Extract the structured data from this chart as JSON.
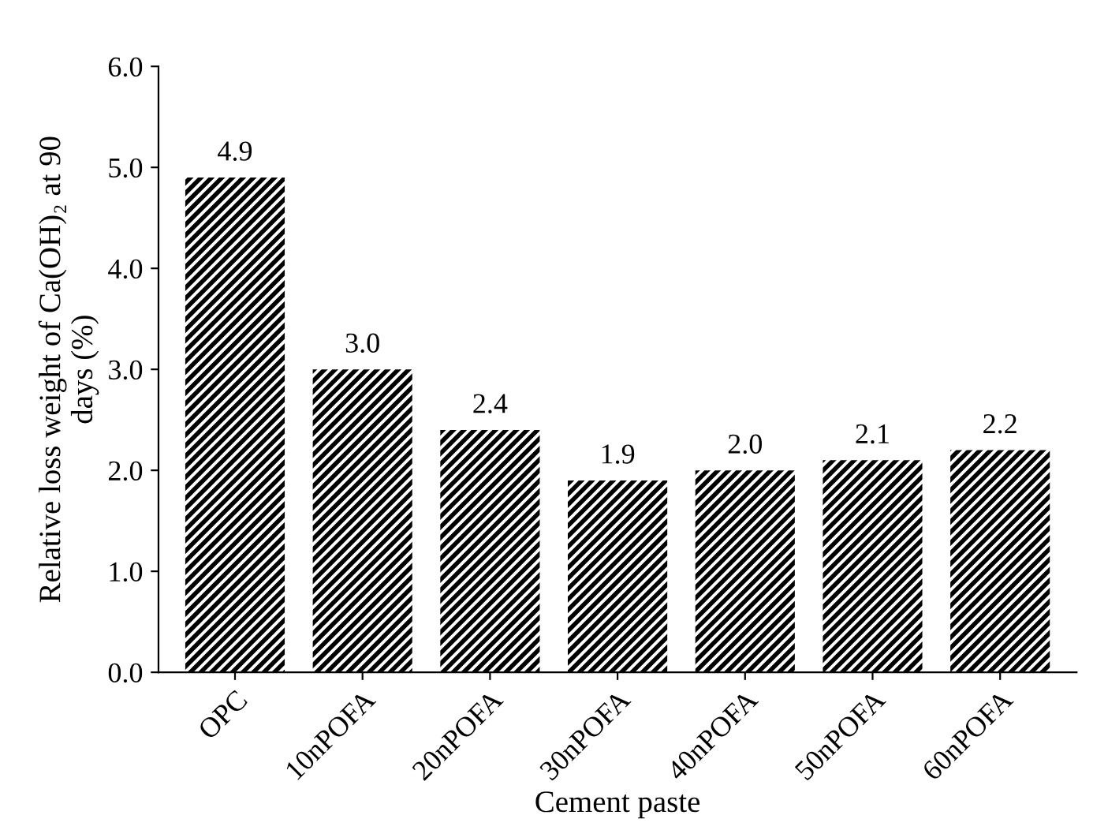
{
  "chart_data": {
    "type": "bar",
    "xlabel": "Cement paste",
    "ylabel": "Relative loss weight of Ca(OH)₂ at 90\ndays (%)",
    "categories": [
      "OPC",
      "10nPOFA",
      "20nPOFA",
      "30nPOFA",
      "40nPOFA",
      "50nPOFA",
      "60nPOFA"
    ],
    "values": [
      4.9,
      3.0,
      2.4,
      1.9,
      2.0,
      2.1,
      2.2
    ],
    "color": "#000000",
    "ylim": [
      0,
      6
    ],
    "yticks": [
      {
        "value": 0,
        "label": "0.0"
      },
      {
        "value": 1,
        "label": "1.0"
      },
      {
        "value": 2,
        "label": "2.0"
      },
      {
        "value": 3,
        "label": "3.0"
      },
      {
        "value": 4,
        "label": "4.0"
      },
      {
        "value": 5,
        "label": "5.0"
      },
      {
        "value": 6,
        "label": "6.0"
      }
    ],
    "value_labels": [
      "4.9",
      "3.0",
      "2.4",
      "1.9",
      "2.0",
      "2.1",
      "2.2"
    ],
    "grid": false,
    "legend": false
  }
}
